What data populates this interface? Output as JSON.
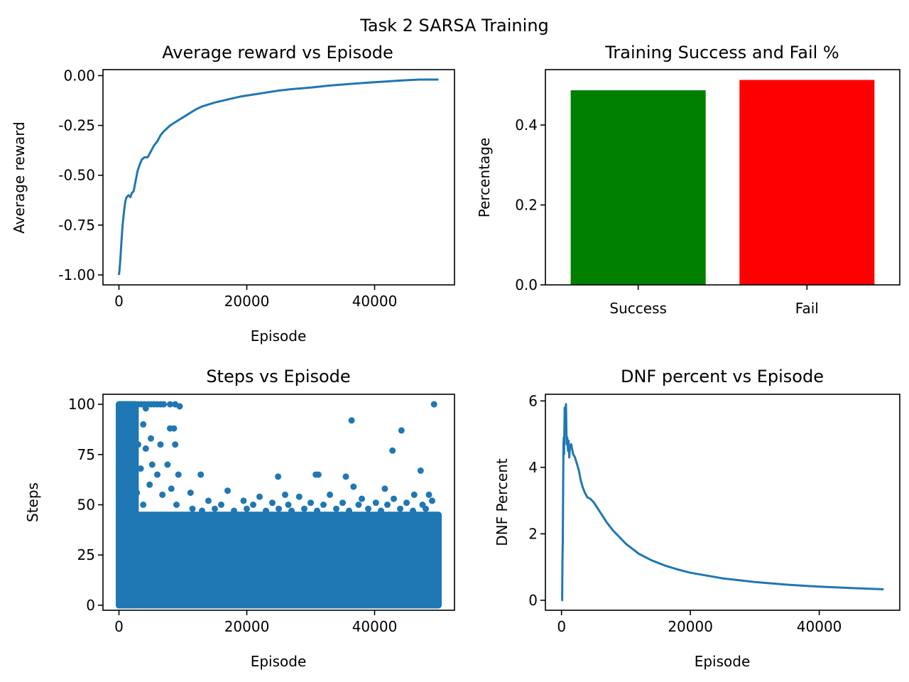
{
  "figure": {
    "suptitle": "Task 2 SARSA Training"
  },
  "chart_data": [
    {
      "id": "reward",
      "type": "line",
      "title": "Average reward vs Episode",
      "xlabel": "Episode",
      "ylabel": "Average reward",
      "xlim": [
        -2500,
        52500
      ],
      "ylim": [
        -1.05,
        0.03
      ],
      "xticks": [
        0,
        20000,
        40000
      ],
      "xtick_labels": [
        "0",
        "20000",
        "40000"
      ],
      "yticks": [
        0.0,
        -0.25,
        -0.5,
        -0.75,
        -1.0
      ],
      "ytick_labels": [
        "0.00",
        "-0.25",
        "-0.50",
        "-0.75",
        "-1.00"
      ],
      "grid": false,
      "color": "#1f77b4",
      "series": [
        {
          "x": [
            0,
            100,
            200,
            300,
            400,
            500,
            600,
            800,
            1000,
            1200,
            1500,
            1800,
            2000,
            2300,
            2600,
            2900,
            3200,
            3600,
            4000,
            4500,
            5000,
            5500,
            6000,
            6500,
            7000,
            8000,
            9000,
            10000,
            11000,
            12000,
            13000,
            14000,
            15000,
            17000,
            19000,
            21000,
            23000,
            25000,
            27000,
            30000,
            33000,
            36000,
            40000,
            44000,
            47000,
            50000
          ],
          "y": [
            -1.0,
            -0.97,
            -0.93,
            -0.88,
            -0.83,
            -0.78,
            -0.74,
            -0.68,
            -0.63,
            -0.61,
            -0.6,
            -0.61,
            -0.59,
            -0.58,
            -0.53,
            -0.48,
            -0.45,
            -0.42,
            -0.41,
            -0.41,
            -0.38,
            -0.35,
            -0.33,
            -0.3,
            -0.28,
            -0.25,
            -0.23,
            -0.21,
            -0.19,
            -0.17,
            -0.155,
            -0.145,
            -0.135,
            -0.12,
            -0.105,
            -0.095,
            -0.085,
            -0.075,
            -0.068,
            -0.06,
            -0.05,
            -0.042,
            -0.033,
            -0.025,
            -0.02,
            -0.02
          ]
        }
      ]
    },
    {
      "id": "success",
      "type": "bar",
      "title": "Training Success and Fail %",
      "xlabel": "",
      "ylabel": "Percentage",
      "categories": [
        "Success",
        "Fail"
      ],
      "values": [
        0.487,
        0.513
      ],
      "colors": [
        "#008000",
        "#ff0000"
      ],
      "ylim": [
        0,
        0.5387
      ],
      "yticks": [
        0.0,
        0.2,
        0.4
      ],
      "ytick_labels": [
        "0.0",
        "0.2",
        "0.4"
      ],
      "grid": false
    },
    {
      "id": "steps",
      "type": "scatter",
      "title": "Steps vs Episode",
      "xlabel": "Episode",
      "ylabel": "Steps",
      "xlim": [
        -2500,
        52500
      ],
      "ylim": [
        -2.5,
        105
      ],
      "xticks": [
        0,
        20000,
        40000
      ],
      "xtick_labels": [
        "0",
        "20000",
        "40000"
      ],
      "yticks": [
        0,
        25,
        50,
        75,
        100
      ],
      "ytick_labels": [
        "0",
        "25",
        "50",
        "75",
        "100"
      ],
      "grid": false,
      "color": "#1f77b4",
      "dense_band": {
        "x_range": [
          0,
          50000
        ],
        "y_range": [
          0,
          45
        ]
      },
      "early_band": {
        "x_range": [
          0,
          10000
        ],
        "y_range": [
          0,
          100
        ]
      },
      "points": [
        {
          "x": 200,
          "y": 100
        },
        {
          "x": 600,
          "y": 100
        },
        {
          "x": 1000,
          "y": 100
        },
        {
          "x": 1500,
          "y": 100
        },
        {
          "x": 2000,
          "y": 100
        },
        {
          "x": 2500,
          "y": 100
        },
        {
          "x": 3000,
          "y": 100
        },
        {
          "x": 3500,
          "y": 100
        },
        {
          "x": 4000,
          "y": 100
        },
        {
          "x": 4500,
          "y": 100
        },
        {
          "x": 5000,
          "y": 100
        },
        {
          "x": 5500,
          "y": 100
        },
        {
          "x": 6000,
          "y": 100
        },
        {
          "x": 6500,
          "y": 100
        },
        {
          "x": 7000,
          "y": 100
        },
        {
          "x": 8000,
          "y": 100
        },
        {
          "x": 8800,
          "y": 100
        },
        {
          "x": 9500,
          "y": 99
        },
        {
          "x": 4200,
          "y": 98
        },
        {
          "x": 1200,
          "y": 95
        },
        {
          "x": 2500,
          "y": 92
        },
        {
          "x": 3800,
          "y": 90
        },
        {
          "x": 600,
          "y": 88
        },
        {
          "x": 8000,
          "y": 88
        },
        {
          "x": 8600,
          "y": 88
        },
        {
          "x": 1800,
          "y": 85
        },
        {
          "x": 5000,
          "y": 83
        },
        {
          "x": 3000,
          "y": 80
        },
        {
          "x": 6500,
          "y": 80
        },
        {
          "x": 8800,
          "y": 80
        },
        {
          "x": 4200,
          "y": 78
        },
        {
          "x": 1000,
          "y": 75
        },
        {
          "x": 2200,
          "y": 72
        },
        {
          "x": 5200,
          "y": 70
        },
        {
          "x": 7600,
          "y": 70
        },
        {
          "x": 3400,
          "y": 68
        },
        {
          "x": 6000,
          "y": 65
        },
        {
          "x": 9300,
          "y": 65
        },
        {
          "x": 1500,
          "y": 62
        },
        {
          "x": 4800,
          "y": 60
        },
        {
          "x": 8200,
          "y": 58
        },
        {
          "x": 2800,
          "y": 56
        },
        {
          "x": 6800,
          "y": 55
        },
        {
          "x": 400,
          "y": 52
        },
        {
          "x": 3800,
          "y": 50
        },
        {
          "x": 9000,
          "y": 50
        },
        {
          "x": 12800,
          "y": 65
        },
        {
          "x": 36400,
          "y": 92
        },
        {
          "x": 49300,
          "y": 100
        },
        {
          "x": 44200,
          "y": 87
        },
        {
          "x": 42800,
          "y": 77
        },
        {
          "x": 47200,
          "y": 67
        },
        {
          "x": 30800,
          "y": 65
        },
        {
          "x": 31200,
          "y": 65
        },
        {
          "x": 24900,
          "y": 64
        },
        {
          "x": 35500,
          "y": 64
        },
        {
          "x": 36700,
          "y": 59
        },
        {
          "x": 41600,
          "y": 58
        },
        {
          "x": 17000,
          "y": 57
        },
        {
          "x": 11200,
          "y": 56
        },
        {
          "x": 26000,
          "y": 55
        },
        {
          "x": 33000,
          "y": 55
        },
        {
          "x": 46200,
          "y": 55
        },
        {
          "x": 48500,
          "y": 55
        },
        {
          "x": 22000,
          "y": 54
        },
        {
          "x": 28200,
          "y": 54
        },
        {
          "x": 38000,
          "y": 53
        },
        {
          "x": 43000,
          "y": 53
        },
        {
          "x": 14000,
          "y": 52
        },
        {
          "x": 19500,
          "y": 52
        },
        {
          "x": 24000,
          "y": 51
        },
        {
          "x": 30000,
          "y": 51
        },
        {
          "x": 35000,
          "y": 51
        },
        {
          "x": 40200,
          "y": 51
        },
        {
          "x": 45000,
          "y": 51
        },
        {
          "x": 49000,
          "y": 52
        },
        {
          "x": 16000,
          "y": 50
        },
        {
          "x": 21000,
          "y": 50
        },
        {
          "x": 26500,
          "y": 50
        },
        {
          "x": 32000,
          "y": 50
        },
        {
          "x": 37500,
          "y": 50
        },
        {
          "x": 42000,
          "y": 50
        },
        {
          "x": 47500,
          "y": 50
        },
        {
          "x": 11500,
          "y": 48
        },
        {
          "x": 13000,
          "y": 47
        },
        {
          "x": 15000,
          "y": 48
        },
        {
          "x": 18000,
          "y": 47
        },
        {
          "x": 20000,
          "y": 48
        },
        {
          "x": 23000,
          "y": 47
        },
        {
          "x": 25000,
          "y": 48
        },
        {
          "x": 27000,
          "y": 47
        },
        {
          "x": 29000,
          "y": 48
        },
        {
          "x": 31000,
          "y": 47
        },
        {
          "x": 34000,
          "y": 48
        },
        {
          "x": 36000,
          "y": 47
        },
        {
          "x": 39000,
          "y": 48
        },
        {
          "x": 41000,
          "y": 47
        },
        {
          "x": 44000,
          "y": 48
        },
        {
          "x": 46000,
          "y": 47
        },
        {
          "x": 48000,
          "y": 48
        },
        {
          "x": 49800,
          "y": 41
        }
      ]
    },
    {
      "id": "dnf",
      "type": "line",
      "title": "DNF percent vs Episode",
      "xlabel": "Episode",
      "ylabel": "DNF Percent",
      "xlim": [
        -2500,
        52500
      ],
      "ylim": [
        -0.3,
        6.2
      ],
      "xticks": [
        0,
        20000,
        40000
      ],
      "xtick_labels": [
        "0",
        "20000",
        "40000"
      ],
      "yticks": [
        0,
        2,
        4,
        6
      ],
      "ytick_labels": [
        "0",
        "2",
        "4",
        "6"
      ],
      "grid": false,
      "color": "#1f77b4",
      "series": [
        {
          "x": [
            0,
            100,
            150,
            200,
            250,
            300,
            350,
            400,
            450,
            500,
            600,
            700,
            800,
            900,
            1000,
            1100,
            1200,
            1300,
            1500,
            1800,
            2100,
            2400,
            2700,
            3000,
            3300,
            3600,
            4000,
            4500,
            5000,
            5500,
            6000,
            6500,
            7000,
            8000,
            9000,
            10000,
            12000,
            14000,
            16000,
            18000,
            20000,
            25000,
            30000,
            35000,
            40000,
            45000,
            50000
          ],
          "y": [
            0.0,
            0.0,
            1.2,
            1.8,
            3.4,
            4.6,
            4.9,
            4.4,
            5.3,
            5.8,
            5.0,
            5.9,
            4.7,
            4.9,
            4.5,
            4.8,
            4.3,
            4.6,
            4.7,
            4.4,
            4.3,
            4.1,
            3.9,
            3.6,
            3.4,
            3.25,
            3.1,
            3.05,
            2.95,
            2.8,
            2.65,
            2.5,
            2.35,
            2.1,
            1.9,
            1.7,
            1.4,
            1.2,
            1.05,
            0.93,
            0.83,
            0.66,
            0.55,
            0.47,
            0.41,
            0.37,
            0.33
          ]
        }
      ]
    }
  ]
}
